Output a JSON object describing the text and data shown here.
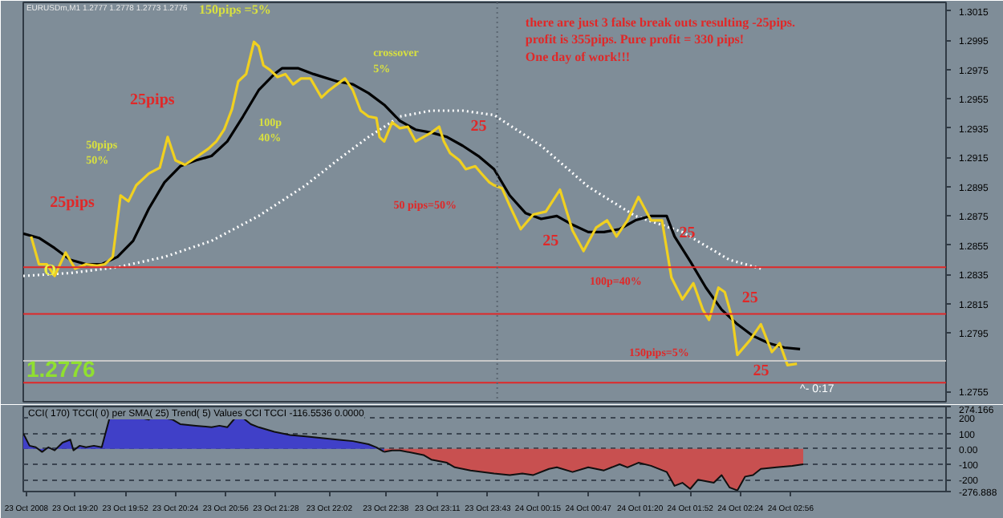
{
  "chart_data": [
    {
      "type": "line",
      "xlim": [
        "2008-10-23T18:47",
        "2008-10-24T04:35"
      ],
      "ylim": [
        1.2748,
        1.3021
      ],
      "yticks": [
        1.3015,
        1.2995,
        1.2975,
        1.2955,
        1.2935,
        1.2915,
        1.2895,
        1.2875,
        1.2855,
        1.2835,
        1.2815,
        1.2795,
        1.2755
      ],
      "tick_labels": "y",
      "series": [
        {
          "color": "#ffffff",
          "line_style": "dotted",
          "x": [
            "2008-10-23T18:47",
            "2008-10-23T19:17",
            "2008-10-23T19:47",
            "2008-10-23T20:17",
            "2008-10-23T20:47",
            "2008-10-23T21:17",
            "2008-10-23T21:47",
            "2008-10-23T22:07",
            "2008-10-23T22:27",
            "2008-10-23T22:47",
            "2008-10-23T23:07",
            "2008-10-23T23:27",
            "2008-10-23T23:47",
            "2008-10-24T00:17",
            "2008-10-24T00:47",
            "2008-10-24T01:17",
            "2008-10-24T01:47",
            "2008-10-24T02:17",
            "2008-10-24T02:37"
          ],
          "values": [
            1.2834,
            1.2836,
            1.284,
            1.2847,
            1.2858,
            1.2875,
            1.2896,
            1.2913,
            1.2929,
            1.2943,
            1.2947,
            1.2947,
            1.2944,
            1.2923,
            1.2895,
            1.2875,
            1.2864,
            1.2845,
            1.2839
          ]
        },
        {
          "color": "#000000",
          "line_style": "solid",
          "x": [
            "2008-10-23T18:47",
            "2008-10-23T18:57",
            "2008-10-23T19:07",
            "2008-10-23T19:17",
            "2008-10-23T19:27",
            "2008-10-23T19:37",
            "2008-10-23T19:47",
            "2008-10-23T19:57",
            "2008-10-23T20:07",
            "2008-10-23T20:17",
            "2008-10-23T20:27",
            "2008-10-23T20:37",
            "2008-10-23T20:47",
            "2008-10-23T20:57",
            "2008-10-23T21:07",
            "2008-10-23T21:17",
            "2008-10-23T21:27",
            "2008-10-23T21:32",
            "2008-10-23T21:42",
            "2008-10-23T21:52",
            "2008-10-23T22:07",
            "2008-10-23T22:17",
            "2008-10-23T22:27",
            "2008-10-23T22:37",
            "2008-10-23T22:47",
            "2008-10-23T22:57",
            "2008-10-23T23:07",
            "2008-10-23T23:17",
            "2008-10-23T23:27",
            "2008-10-23T23:37",
            "2008-10-23T23:47",
            "2008-10-23T23:57",
            "2008-10-24T00:07",
            "2008-10-24T00:17",
            "2008-10-24T00:27",
            "2008-10-24T00:37",
            "2008-10-24T00:47",
            "2008-10-24T00:57",
            "2008-10-24T01:07",
            "2008-10-24T01:17",
            "2008-10-24T01:27",
            "2008-10-24T01:37",
            "2008-10-24T01:42",
            "2008-10-24T01:52",
            "2008-10-24T02:02",
            "2008-10-24T02:12",
            "2008-10-24T02:22",
            "2008-10-24T02:32",
            "2008-10-24T02:42",
            "2008-10-24T02:52",
            "2008-10-24T03:02"
          ],
          "values": [
            1.2863,
            1.286,
            1.2853,
            1.2845,
            1.2842,
            1.2842,
            1.2847,
            1.2858,
            1.288,
            1.2898,
            1.2909,
            1.2913,
            1.2916,
            1.2926,
            1.2943,
            1.2961,
            1.2972,
            1.2976,
            1.2976,
            1.2972,
            1.2967,
            1.2965,
            1.2959,
            1.2951,
            1.294,
            1.2934,
            1.2932,
            1.2929,
            1.2923,
            1.2916,
            1.2907,
            1.2889,
            1.2877,
            1.2873,
            1.2875,
            1.2869,
            1.2864,
            1.2864,
            1.2866,
            1.2872,
            1.2875,
            1.2875,
            1.2861,
            1.2844,
            1.2826,
            1.2811,
            1.2801,
            1.2793,
            1.2788,
            1.2785,
            1.2784
          ]
        },
        {
          "color": "#f0d020",
          "line_style": "solid",
          "x": [
            "2008-10-23T18:52",
            "2008-10-23T18:57",
            "2008-10-23T19:02",
            "2008-10-23T19:07",
            "2008-10-23T19:14",
            "2008-10-23T19:20",
            "2008-10-23T19:27",
            "2008-10-23T19:34",
            "2008-10-23T19:39",
            "2008-10-23T19:44",
            "2008-10-23T19:49",
            "2008-10-23T19:54",
            "2008-10-23T19:59",
            "2008-10-23T20:07",
            "2008-10-23T20:14",
            "2008-10-23T20:19",
            "2008-10-23T20:24",
            "2008-10-23T20:30",
            "2008-10-23T20:37",
            "2008-10-23T20:45",
            "2008-10-23T20:50",
            "2008-10-23T20:55",
            "2008-10-23T21:00",
            "2008-10-23T21:04",
            "2008-10-23T21:09",
            "2008-10-23T21:14",
            "2008-10-23T21:17",
            "2008-10-23T21:20",
            "2008-10-23T21:24",
            "2008-10-23T21:29",
            "2008-10-23T21:34",
            "2008-10-23T21:39",
            "2008-10-23T21:44",
            "2008-10-23T21:50",
            "2008-10-23T21:57",
            "2008-10-23T22:02",
            "2008-10-23T22:07",
            "2008-10-23T22:12",
            "2008-10-23T22:17",
            "2008-10-23T22:22",
            "2008-10-23T22:27",
            "2008-10-23T22:32",
            "2008-10-23T22:34",
            "2008-10-23T22:37",
            "2008-10-23T22:42",
            "2008-10-23T22:47",
            "2008-10-23T22:52",
            "2008-10-23T22:57",
            "2008-10-23T23:02",
            "2008-10-23T23:07",
            "2008-10-23T23:12",
            "2008-10-23T23:15",
            "2008-10-23T23:19",
            "2008-10-23T23:25",
            "2008-10-23T23:29",
            "2008-10-23T23:35",
            "2008-10-23T23:39",
            "2008-10-23T23:44",
            "2008-10-23T23:47",
            "2008-10-23T23:52",
            "2008-10-23T23:57",
            "2008-10-24T00:04",
            "2008-10-24T00:12",
            "2008-10-24T00:20",
            "2008-10-24T00:29",
            "2008-10-24T00:37",
            "2008-10-24T00:44",
            "2008-10-24T00:52",
            "2008-10-24T00:59",
            "2008-10-24T01:05",
            "2008-10-24T01:12",
            "2008-10-24T01:19",
            "2008-10-24T01:27",
            "2008-10-24T01:34",
            "2008-10-24T01:40",
            "2008-10-24T01:47",
            "2008-10-24T01:54",
            "2008-10-24T02:00",
            "2008-10-24T02:04",
            "2008-10-24T02:10",
            "2008-10-24T02:14",
            "2008-10-24T02:19",
            "2008-10-24T02:22",
            "2008-10-24T02:30",
            "2008-10-24T02:37",
            "2008-10-24T02:44",
            "2008-10-24T02:49",
            "2008-10-24T02:54",
            "2008-10-24T03:00"
          ],
          "values": [
            1.2861,
            1.2842,
            1.2842,
            1.2834,
            1.285,
            1.2839,
            1.2842,
            1.2841,
            1.2842,
            1.2847,
            1.2889,
            1.2885,
            1.2896,
            1.2904,
            1.2908,
            1.2929,
            1.2913,
            1.291,
            1.2915,
            1.2921,
            1.2926,
            1.2934,
            1.2948,
            1.2967,
            1.2972,
            1.2994,
            1.2991,
            1.2978,
            1.2975,
            1.297,
            1.2972,
            1.2965,
            1.2969,
            1.2969,
            1.2956,
            1.2961,
            1.2965,
            1.2969,
            1.2961,
            1.2947,
            1.2943,
            1.2942,
            1.2929,
            1.2926,
            1.2939,
            1.2935,
            1.2936,
            1.2926,
            1.2929,
            1.2932,
            1.2936,
            1.2926,
            1.2918,
            1.2913,
            1.2907,
            1.2909,
            1.2904,
            1.2898,
            1.2896,
            1.2894,
            1.2882,
            1.2866,
            1.2876,
            1.2878,
            1.2893,
            1.2865,
            1.2851,
            1.2867,
            1.2872,
            1.2861,
            1.2872,
            1.2888,
            1.2872,
            1.2872,
            1.2833,
            1.2818,
            1.2829,
            1.2811,
            1.2804,
            1.2826,
            1.2823,
            1.2804,
            1.278,
            1.279,
            1.2801,
            1.2782,
            1.2788,
            1.2773,
            1.2774
          ]
        }
      ],
      "ref_lines": [
        {
          "axis": "y",
          "value": 1.284,
          "color": "#e02828"
        },
        {
          "axis": "y",
          "value": 1.2808,
          "color": "#e02828"
        },
        {
          "axis": "y",
          "value": 1.2776,
          "color": "#c8c8c8"
        },
        {
          "axis": "y",
          "value": 1.2761,
          "color": "#e02828"
        },
        {
          "axis": "x",
          "value": "2008-10-23T23:49",
          "color": "#5a6570",
          "line_style": "dotted"
        }
      ],
      "annotations": [
        "EURUSDm,M1  1.2777 1.2778 1.2773 1.2776",
        "150pips =5%",
        "crossover\n5%",
        "25pips",
        "50pips\n50%",
        "100p\n40%",
        "25pips",
        "25",
        "50 pips=50%",
        "25",
        "25",
        "100p=40%",
        "25",
        "150pips=5%",
        "25",
        "there are just 3 false break outs resulting -25pips.\nprofit is 355pips. Pure profit = 330 pips!\nOne day of work!!!",
        "1.2776",
        "^- 0:17",
        "O"
      ]
    },
    {
      "type": "area",
      "title": "CCI( 170) TCCI( 0) per SMA( 25) Trend( 5) Values CCI TCCI -116.5536 0.0000",
      "xlim": [
        "2008-10-23T18:47",
        "2008-10-24T04:35"
      ],
      "ylim": [
        -276.888,
        274.166
      ],
      "yticks": [
        274.166,
        200,
        100,
        {
          "value": 0,
          "label": "0.00"
        },
        -100,
        -200,
        -276.888
      ],
      "grid": "y",
      "xticks": [
        {
          "value": "2008-10-23T18:49",
          "label": "23 Oct 2008"
        },
        {
          "value": "2008-10-23T19:20",
          "label": "23 Oct 19:20"
        },
        {
          "value": "2008-10-23T19:52",
          "label": "23 Oct 19:52"
        },
        {
          "value": "2008-10-23T20:24",
          "label": "23 Oct 20:24"
        },
        {
          "value": "2008-10-23T20:56",
          "label": "23 Oct 20:56"
        },
        {
          "value": "2008-10-23T21:28",
          "label": "23 Oct 21:28"
        },
        {
          "value": "2008-10-23T22:02",
          "label": "23 Oct 22:02"
        },
        {
          "value": "2008-10-23T22:38",
          "label": "23 Oct 22:38"
        },
        {
          "value": "2008-10-23T23:11",
          "label": "23 Oct 23:11"
        },
        {
          "value": "2008-10-23T23:43",
          "label": "23 Oct 23:43"
        },
        {
          "value": "2008-10-24T00:15",
          "label": "24 Oct 00:15"
        },
        {
          "value": "2008-10-24T00:47",
          "label": "24 Oct 00:47"
        },
        {
          "value": "2008-10-24T01:20",
          "label": "24 Oct 01:20"
        },
        {
          "value": "2008-10-24T01:52",
          "label": "24 Oct 01:52"
        },
        {
          "value": "2008-10-24T02:24",
          "label": "24 Oct 02:24"
        },
        {
          "value": "2008-10-24T02:56",
          "label": "24 Oct 02:56"
        }
      ],
      "series": [
        {
          "color": "#4040c8",
          "x": [
            "2008-10-23T18:47",
            "2008-10-23T18:51",
            "2008-10-23T18:55",
            "2008-10-23T18:59",
            "2008-10-23T19:03",
            "2008-10-23T19:07",
            "2008-10-23T19:12",
            "2008-10-23T19:17",
            "2008-10-23T19:19",
            "2008-10-23T19:23",
            "2008-10-23T19:27",
            "2008-10-23T19:32",
            "2008-10-23T19:37",
            "2008-10-23T19:42",
            "2008-10-23T19:47",
            "2008-10-23T19:57",
            "2008-10-23T20:07",
            "2008-10-23T20:12",
            "2008-10-23T20:17",
            "2008-10-23T20:22",
            "2008-10-23T20:27",
            "2008-10-23T20:37",
            "2008-10-23T20:47",
            "2008-10-23T20:52",
            "2008-10-23T20:57",
            "2008-10-23T21:02",
            "2008-10-23T21:07",
            "2008-10-23T21:12",
            "2008-10-23T21:17",
            "2008-10-23T21:27",
            "2008-10-23T21:37",
            "2008-10-23T21:47",
            "2008-10-23T21:57",
            "2008-10-23T22:07",
            "2008-10-23T22:17",
            "2008-10-23T22:27",
            "2008-10-23T22:32",
            "2008-10-23T22:37"
          ],
          "values": [
            100,
            20,
            10,
            -20,
            10,
            -10,
            40,
            60,
            -10,
            20,
            10,
            20,
            10,
            200,
            230,
            210,
            190,
            230,
            200,
            190,
            160,
            150,
            140,
            150,
            140,
            200,
            200,
            160,
            140,
            110,
            90,
            80,
            70,
            60,
            50,
            30,
            10,
            -20
          ]
        },
        {
          "color": "#c85050",
          "x": [
            "2008-10-23T22:37",
            "2008-10-23T22:42",
            "2008-10-23T22:47",
            "2008-10-23T22:57",
            "2008-10-23T23:02",
            "2008-10-23T23:07",
            "2008-10-23T23:17",
            "2008-10-23T23:22",
            "2008-10-23T23:32",
            "2008-10-23T23:47",
            "2008-10-23T23:57",
            "2008-10-24T00:05",
            "2008-10-24T00:12",
            "2008-10-24T00:22",
            "2008-10-24T00:27",
            "2008-10-24T00:37",
            "2008-10-24T00:47",
            "2008-10-24T00:57",
            "2008-10-24T01:07",
            "2008-10-24T01:12",
            "2008-10-24T01:19",
            "2008-10-24T01:27",
            "2008-10-24T01:37",
            "2008-10-24T01:42",
            "2008-10-24T01:47",
            "2008-10-24T01:52",
            "2008-10-24T01:57",
            "2008-10-24T02:07",
            "2008-10-24T02:12",
            "2008-10-24T02:17",
            "2008-10-24T02:22",
            "2008-10-24T02:27",
            "2008-10-24T02:32",
            "2008-10-24T02:37",
            "2008-10-24T02:47",
            "2008-10-24T02:57",
            "2008-10-24T03:04"
          ],
          "values": [
            -20,
            -10,
            -10,
            -30,
            -40,
            -70,
            -90,
            -120,
            -140,
            -160,
            -170,
            -160,
            -170,
            -130,
            -120,
            -150,
            -120,
            -140,
            -100,
            -120,
            -90,
            -110,
            -150,
            -240,
            -220,
            -260,
            -200,
            -220,
            -170,
            -250,
            -270,
            -180,
            -170,
            -130,
            -120,
            -110,
            -100
          ]
        }
      ]
    }
  ]
}
